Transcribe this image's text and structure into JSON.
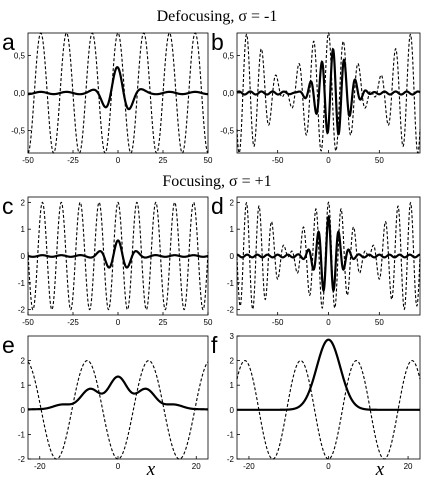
{
  "headings": {
    "defocusing": "Defocusing, σ = -1",
    "focusing": "Focusing, σ = +1"
  },
  "x_variable": "x",
  "chart_data": [
    {
      "id": "a",
      "type": "line",
      "panel_label": "a",
      "xlim": [
        -50,
        50
      ],
      "ylim": [
        -0.8,
        0.8
      ],
      "xticks": [
        -50,
        -25,
        0,
        25,
        50
      ],
      "xtick_labels": [
        "-50",
        "-25",
        "0",
        "25",
        "50"
      ],
      "yticks": [
        0.5,
        0.0,
        -0.5
      ],
      "ytick_labels": [
        "0,5",
        "0,0",
        "-0,5"
      ],
      "series": [
        {
          "style": "dashed",
          "kind": "cos",
          "amp": 0.8,
          "period": 14.3,
          "phase": 0
        },
        {
          "style": "solid",
          "kind": "packet",
          "comps": [
            {
              "amp": 0.33,
              "center": 0,
              "width": 9,
              "period": 14.3,
              "phase": 0.2
            }
          ],
          "tail": 0.015,
          "tail_period": 14.3
        }
      ]
    },
    {
      "id": "b",
      "type": "line",
      "panel_label": "b",
      "xlim": [
        -90,
        90
      ],
      "ylim": [
        -0.8,
        0.8
      ],
      "xticks": [
        -50,
        0,
        50
      ],
      "xtick_labels": [
        "-50",
        "0",
        "50"
      ],
      "yticks": [
        0.5,
        0.0,
        -0.5
      ],
      "ytick_labels": [
        "0,5",
        "0,0",
        "-0,5"
      ],
      "series": [
        {
          "style": "dashed",
          "kind": "beat",
          "amp": 0.8,
          "p1": 13.5,
          "p2": 16.0
        },
        {
          "style": "solid",
          "kind": "packet",
          "comps": [
            {
              "amp": 0.6,
              "center": 5,
              "width": 20,
              "period": 11,
              "phase": 0.3
            }
          ],
          "tail": 0.02,
          "tail_period": 11
        }
      ]
    },
    {
      "id": "c",
      "type": "line",
      "panel_label": "c",
      "xlim": [
        -50,
        50
      ],
      "ylim": [
        -2.2,
        2.2
      ],
      "xticks": [
        -50,
        -25,
        0,
        25,
        50
      ],
      "xtick_labels": [
        "-50",
        "-25",
        "0",
        "25",
        "50"
      ],
      "yticks": [
        2,
        1,
        0,
        -1,
        -2
      ],
      "ytick_labels": [
        "2",
        "1",
        "0",
        "-1",
        "-2"
      ],
      "series": [
        {
          "style": "dashed",
          "kind": "cos",
          "amp": 2.0,
          "period": 10.5,
          "phase": 0
        },
        {
          "style": "solid",
          "kind": "packet",
          "comps": [
            {
              "amp": 0.55,
              "center": 0,
              "width": 9,
              "period": 10.5,
              "phase": 0
            }
          ],
          "tail": 0.03,
          "tail_period": 10.5
        }
      ]
    },
    {
      "id": "d",
      "type": "line",
      "panel_label": "d",
      "xlim": [
        -90,
        90
      ],
      "ylim": [
        -2.2,
        2.2
      ],
      "xticks": [
        -50,
        0,
        50
      ],
      "xtick_labels": [
        "-50",
        "0",
        "50"
      ],
      "yticks": [
        2,
        1,
        0,
        -1,
        -2
      ],
      "ytick_labels": [
        "2",
        "1",
        "0",
        "-1",
        "-2"
      ],
      "series": [
        {
          "style": "dashed",
          "kind": "beat",
          "amp": 2.0,
          "p1": 11.5,
          "p2": 13.5
        },
        {
          "style": "solid",
          "kind": "packet",
          "comps": [
            {
              "amp": 1.4,
              "center": 0,
              "width": 14,
              "period": 10,
              "phase": 0
            }
          ],
          "tail": 0.05,
          "tail_period": 10
        }
      ]
    },
    {
      "id": "e",
      "type": "line",
      "panel_label": "e",
      "xlim": [
        -23,
        23
      ],
      "ylim": [
        -2.0,
        3.0
      ],
      "xticks": [
        -20,
        0,
        20
      ],
      "xtick_labels": [
        "-20",
        "0",
        "20"
      ],
      "yticks": [
        2,
        1,
        0,
        -1,
        -2
      ],
      "ytick_labels": [
        "2",
        "1",
        "0",
        "-1",
        "-2"
      ],
      "series": [
        {
          "style": "dashed",
          "kind": "cos",
          "amp": 2.0,
          "period": 15.7,
          "phase": 3.1416
        },
        {
          "style": "solid",
          "kind": "packet",
          "comps": [
            {
              "amp": 1.35,
              "center": 0,
              "width": 11
            }
          ],
          "tail": 0,
          "tail_period": 15.7,
          "abs_cos": true,
          "ripple_period": 7.85
        }
      ]
    },
    {
      "id": "f",
      "type": "line",
      "panel_label": "f",
      "xlim": [
        -23,
        23
      ],
      "ylim": [
        -2.0,
        3.0
      ],
      "xticks": [
        -20,
        0,
        20
      ],
      "xtick_labels": [
        "-20",
        "0",
        "20"
      ],
      "yticks": [
        3,
        2,
        1,
        0,
        -1,
        -2
      ],
      "ytick_labels": [
        "3",
        "2",
        "1",
        "0",
        "-1",
        "-2"
      ],
      "series": [
        {
          "style": "dashed",
          "kind": "cos",
          "amp": 2.0,
          "period": 14.0,
          "phase": 3.1416
        },
        {
          "style": "solid",
          "kind": "gauss_only",
          "amp": 2.85,
          "center": 0,
          "width": 4.2
        }
      ]
    }
  ]
}
